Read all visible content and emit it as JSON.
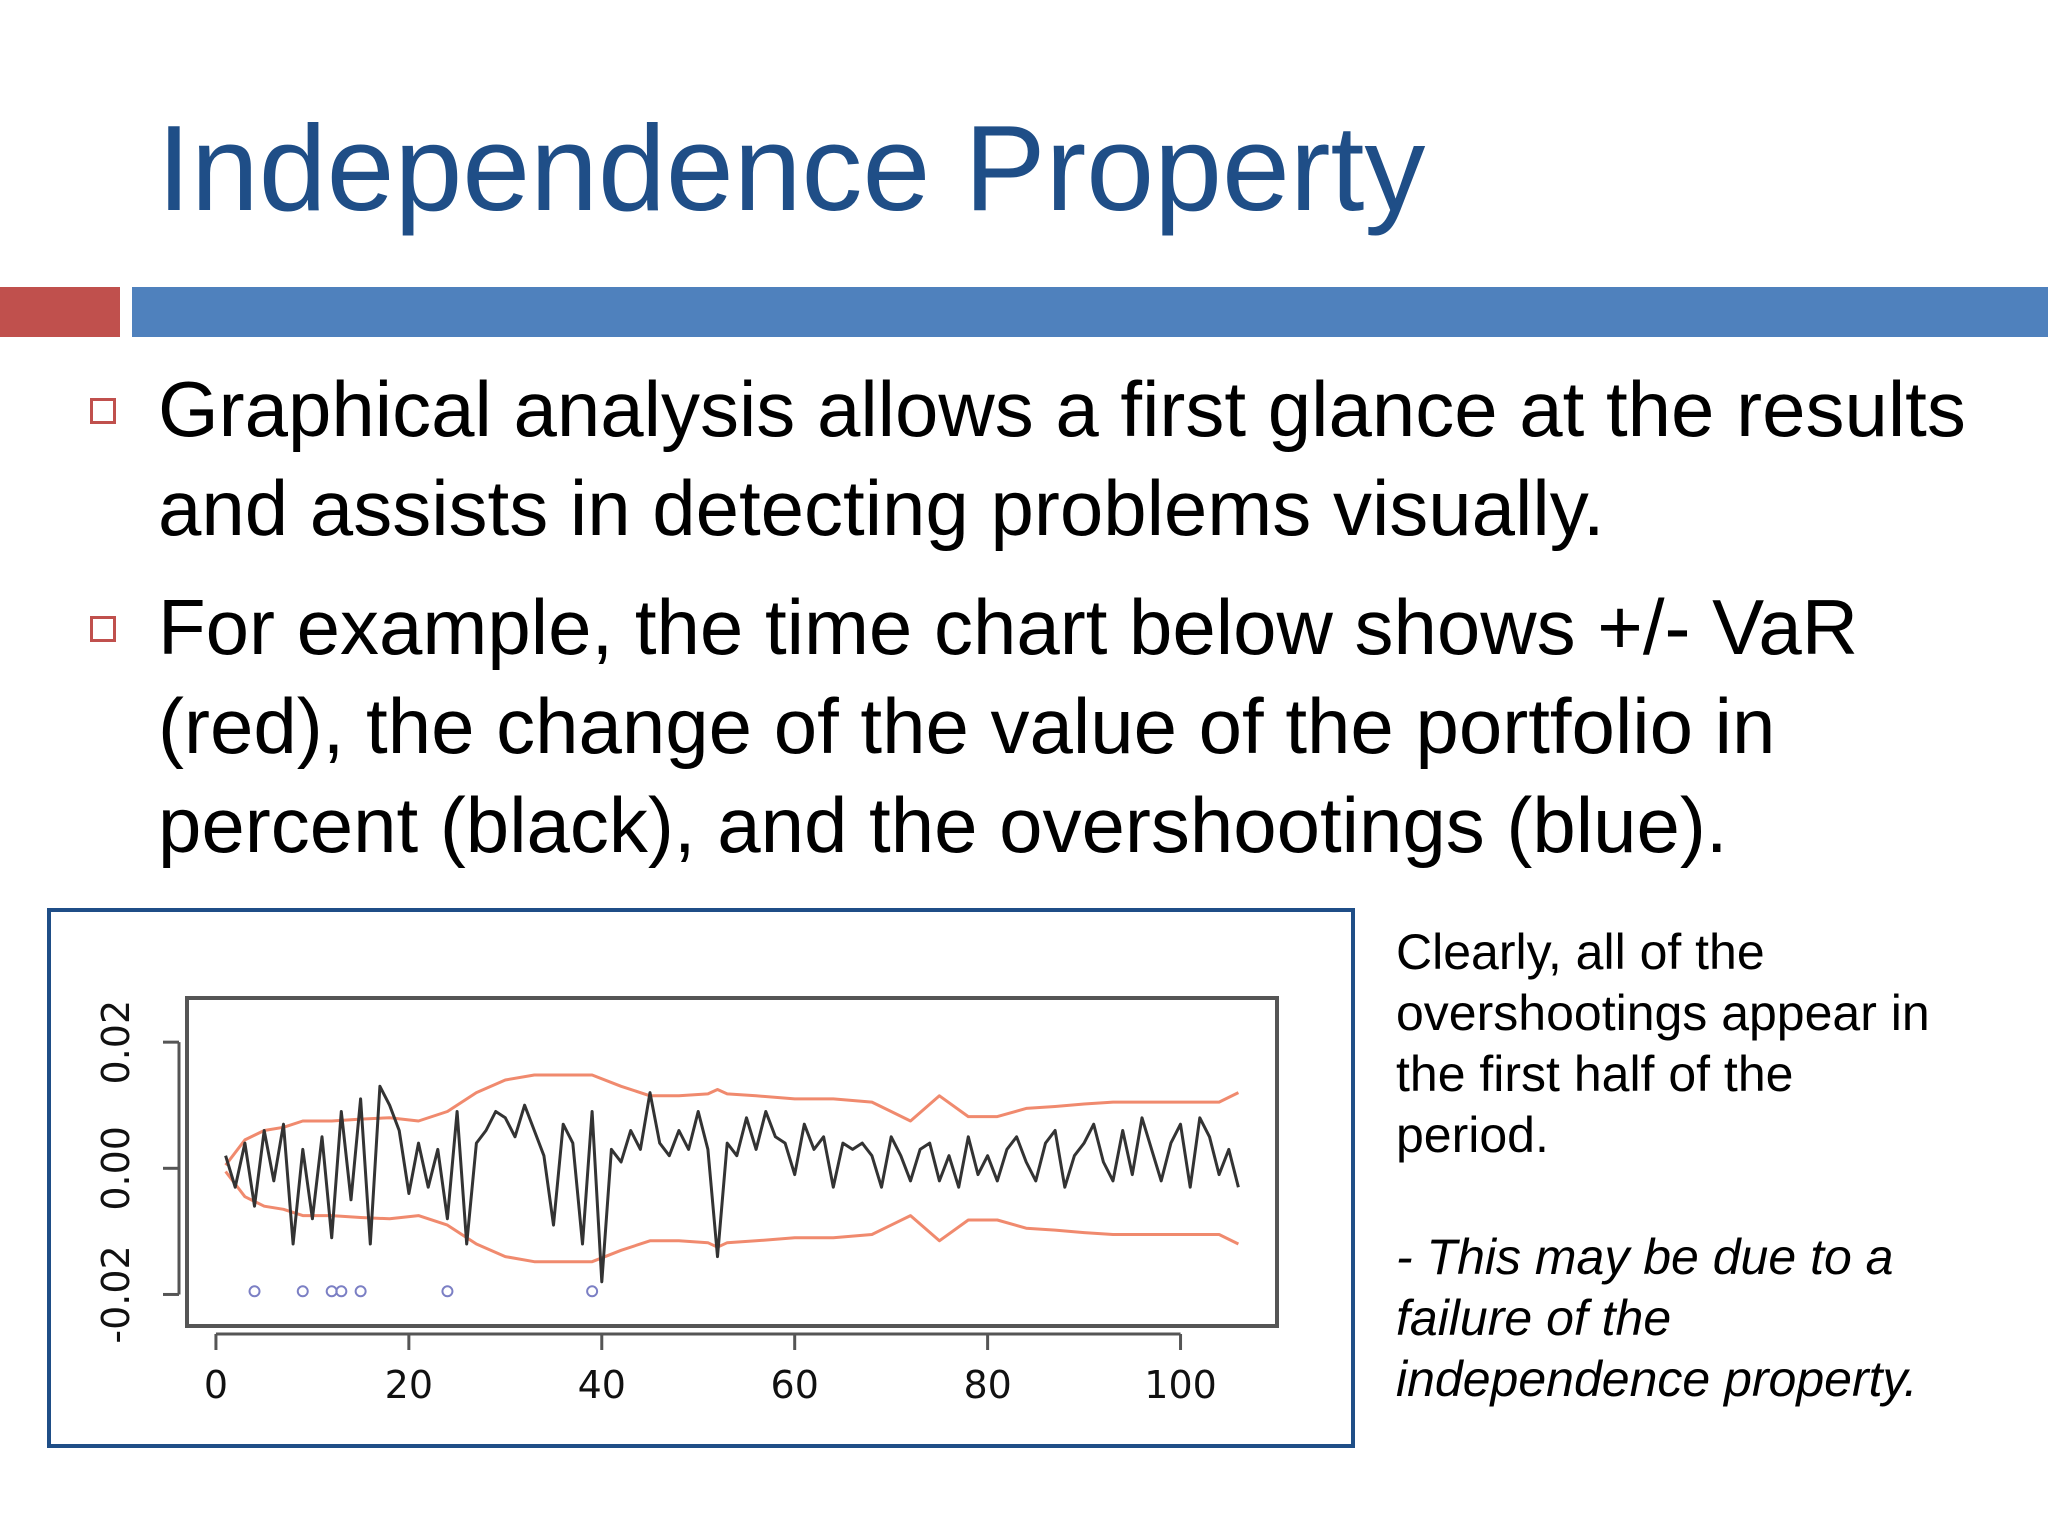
{
  "slide": {
    "title": "Independence Property",
    "bullets": [
      "Graphical analysis allows a first glance at the results and assists in detecting problems visually.",
      "For example, the time chart below shows +/- VaR (red), the change of the value of the portfolio in percent (black), and the overshootings (blue)."
    ],
    "side_note": {
      "paragraph": "Clearly, all of the\novershootings appear in\nthe first half of the\nperiod.",
      "italic": "- This may be due to a\nfailure of the\nindependence property."
    }
  },
  "colors": {
    "title": "#1f4e87",
    "accent_red": "#c0504d",
    "accent_blue": "#4f81bd",
    "var_line": "#f08a6e",
    "returns_line": "#333333",
    "overshooting_marker": "#7b7fc4"
  },
  "chart_data": {
    "type": "line",
    "x_ticks": [
      0,
      20,
      40,
      60,
      80,
      100
    ],
    "y_ticks": [
      -0.02,
      0.0,
      0.02
    ],
    "y_tick_labels": [
      "-0.02",
      "0.00",
      "0.02"
    ],
    "xlim": [
      -3,
      110
    ],
    "ylim": [
      -0.025,
      0.027
    ],
    "grid": false,
    "series": [
      {
        "key": "var_plus",
        "x": [
          1,
          3,
          5,
          7,
          9,
          12,
          15,
          18,
          21,
          24,
          27,
          30,
          33,
          36,
          39,
          42,
          45,
          48,
          51,
          52,
          53,
          56,
          60,
          64,
          68,
          72,
          75,
          78,
          81,
          84,
          87,
          90,
          93,
          96,
          99,
          102,
          104,
          106
        ],
        "y": [
          0.0005,
          0.0045,
          0.006,
          0.0065,
          0.0075,
          0.0075,
          0.0078,
          0.008,
          0.0075,
          0.009,
          0.012,
          0.014,
          0.0148,
          0.0148,
          0.0148,
          0.013,
          0.0115,
          0.0115,
          0.0118,
          0.0125,
          0.0118,
          0.0115,
          0.011,
          0.011,
          0.0105,
          0.0075,
          0.0115,
          0.0082,
          0.0082,
          0.0095,
          0.0098,
          0.0102,
          0.0105,
          0.0105,
          0.0105,
          0.0105,
          0.0105,
          0.012
        ]
      },
      {
        "key": "var_minus",
        "x": [
          1,
          3,
          5,
          7,
          9,
          12,
          15,
          18,
          21,
          24,
          27,
          30,
          33,
          36,
          39,
          42,
          45,
          48,
          51,
          52,
          53,
          56,
          60,
          64,
          68,
          72,
          75,
          78,
          81,
          84,
          87,
          90,
          93,
          96,
          99,
          102,
          104,
          106
        ],
        "y": [
          -0.0005,
          -0.0045,
          -0.006,
          -0.0065,
          -0.0075,
          -0.0075,
          -0.0078,
          -0.008,
          -0.0075,
          -0.009,
          -0.012,
          -0.014,
          -0.0148,
          -0.0148,
          -0.0148,
          -0.013,
          -0.0115,
          -0.0115,
          -0.0118,
          -0.0125,
          -0.0118,
          -0.0115,
          -0.011,
          -0.011,
          -0.0105,
          -0.0075,
          -0.0115,
          -0.0082,
          -0.0082,
          -0.0095,
          -0.0098,
          -0.0102,
          -0.0105,
          -0.0105,
          -0.0105,
          -0.0105,
          -0.0105,
          -0.012
        ]
      },
      {
        "key": "returns",
        "x": [
          1,
          2,
          3,
          4,
          5,
          6,
          7,
          8,
          9,
          10,
          11,
          12,
          13,
          14,
          15,
          16,
          17,
          18,
          19,
          20,
          21,
          22,
          23,
          24,
          25,
          26,
          27,
          28,
          29,
          30,
          31,
          32,
          33,
          34,
          35,
          36,
          37,
          38,
          39,
          40,
          41,
          42,
          43,
          44,
          45,
          46,
          47,
          48,
          49,
          50,
          51,
          52,
          53,
          54,
          55,
          56,
          57,
          58,
          59,
          60,
          61,
          62,
          63,
          64,
          65,
          66,
          67,
          68,
          69,
          70,
          71,
          72,
          73,
          74,
          75,
          76,
          77,
          78,
          79,
          80,
          81,
          82,
          83,
          84,
          85,
          86,
          87,
          88,
          89,
          90,
          91,
          92,
          93,
          94,
          95,
          96,
          97,
          98,
          99,
          100,
          101,
          102,
          103,
          104,
          105,
          106
        ],
        "y": [
          0.002,
          -0.003,
          0.004,
          -0.006,
          0.006,
          -0.002,
          0.007,
          -0.012,
          0.003,
          -0.008,
          0.005,
          -0.011,
          0.009,
          -0.005,
          0.011,
          -0.012,
          0.013,
          0.01,
          0.006,
          -0.004,
          0.004,
          -0.003,
          0.003,
          -0.008,
          0.009,
          -0.012,
          0.004,
          0.006,
          0.009,
          0.008,
          0.005,
          0.01,
          0.006,
          0.002,
          -0.009,
          0.007,
          0.004,
          -0.012,
          0.009,
          -0.018,
          0.003,
          0.001,
          0.006,
          0.003,
          0.012,
          0.004,
          0.002,
          0.006,
          0.003,
          0.009,
          0.003,
          -0.014,
          0.004,
          0.002,
          0.008,
          0.003,
          0.009,
          0.005,
          0.004,
          -0.001,
          0.007,
          0.003,
          0.005,
          -0.003,
          0.004,
          0.003,
          0.004,
          0.002,
          -0.003,
          0.005,
          0.002,
          -0.002,
          0.003,
          0.004,
          -0.002,
          0.002,
          -0.003,
          0.005,
          -0.001,
          0.002,
          -0.002,
          0.003,
          0.005,
          0.001,
          -0.002,
          0.004,
          0.006,
          -0.003,
          0.002,
          0.004,
          0.007,
          0.001,
          -0.002,
          0.006,
          -0.001,
          0.008,
          0.003,
          -0.002,
          0.004,
          0.007,
          -0.003,
          0.008,
          0.005,
          -0.001,
          0.003,
          -0.003
        ]
      },
      {
        "key": "overshootings",
        "x": [
          4,
          9,
          12,
          13,
          15,
          24,
          39
        ],
        "y": [
          -0.0195,
          -0.0195,
          -0.0195,
          -0.0195,
          -0.0195,
          -0.0195,
          -0.0195
        ]
      }
    ]
  }
}
